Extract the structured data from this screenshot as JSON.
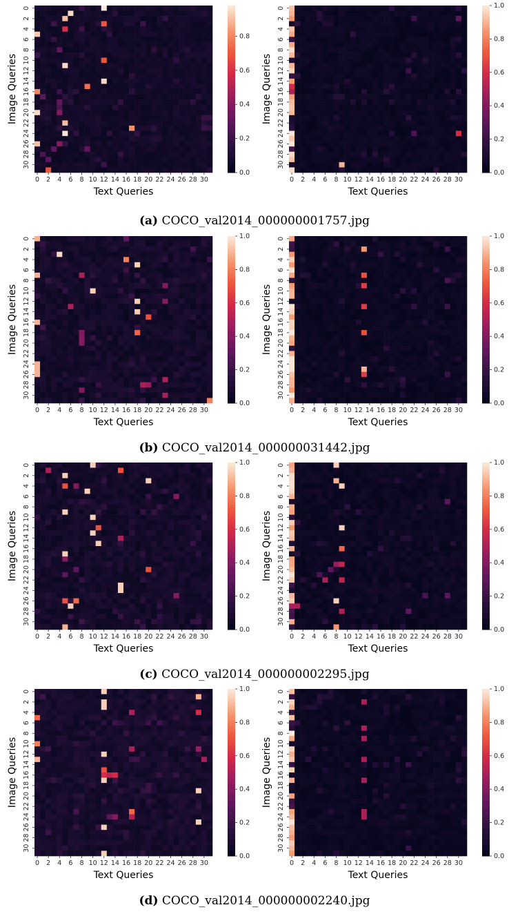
{
  "chart_data": [
    {
      "type": "heatmap",
      "panel": "a",
      "side": "left",
      "xlabel": "Text Queries",
      "ylabel": "Image Queries",
      "clim": [
        0,
        0.98
      ],
      "cbar_ticks": [
        0.0,
        0.2,
        0.4,
        0.6,
        0.8
      ],
      "xticks": [
        0,
        2,
        4,
        6,
        8,
        10,
        12,
        14,
        16,
        18,
        20,
        22,
        24,
        26,
        28,
        30
      ],
      "yticks": [
        0,
        2,
        4,
        6,
        8,
        10,
        12,
        14,
        16,
        18,
        20,
        22,
        24,
        26,
        28,
        30
      ],
      "pattern": {
        "bg": 0.03,
        "noise": 0.06,
        "scattered": [
          [
            0,
            12,
            0.98
          ],
          [
            1,
            6,
            0.95
          ],
          [
            2,
            5,
            0.9
          ],
          [
            3,
            3,
            0.2
          ],
          [
            3,
            12,
            0.7
          ],
          [
            4,
            5,
            0.6
          ],
          [
            4,
            8,
            0.2
          ],
          [
            5,
            0,
            0.92
          ],
          [
            8,
            4,
            0.3
          ],
          [
            9,
            0,
            0.2
          ],
          [
            10,
            12,
            0.7
          ],
          [
            11,
            5,
            0.95
          ],
          [
            14,
            12,
            0.95
          ],
          [
            15,
            9,
            0.75
          ],
          [
            16,
            0,
            0.8
          ],
          [
            16,
            4,
            0.2
          ],
          [
            17,
            1,
            0.3
          ],
          [
            18,
            4,
            0.3
          ],
          [
            19,
            4,
            0.25
          ],
          [
            20,
            0,
            0.95
          ],
          [
            20,
            4,
            0.4
          ],
          [
            22,
            5,
            0.9
          ],
          [
            23,
            17,
            0.82
          ],
          [
            24,
            5,
            0.97
          ],
          [
            26,
            0,
            0.9
          ],
          [
            26,
            4,
            0.4
          ],
          [
            27,
            3,
            0.3
          ],
          [
            27,
            9,
            0.3
          ],
          [
            28,
            1,
            0.25
          ],
          [
            29,
            2,
            0.3
          ],
          [
            31,
            2,
            0.7
          ],
          [
            30,
            12,
            0.2
          ]
        ]
      }
    },
    {
      "type": "heatmap",
      "panel": "a",
      "side": "right",
      "xlabel": "Text Queries",
      "ylabel": "Image Queries",
      "clim": [
        0,
        1
      ],
      "cbar_ticks": [
        0.0,
        0.2,
        0.4,
        0.6,
        0.8,
        1.0
      ],
      "xticks": [
        0,
        2,
        4,
        6,
        8,
        10,
        12,
        14,
        16,
        18,
        20,
        22,
        24,
        26,
        28,
        30
      ],
      "yticks": [
        0,
        2,
        4,
        6,
        8,
        10,
        12,
        14,
        16,
        18,
        20,
        22,
        24,
        26,
        28,
        30
      ],
      "pattern": {
        "bg": 0.01,
        "noise": 0.05,
        "first_col_bright": true,
        "scattered": [
          [
            2,
            22,
            0.2
          ],
          [
            2,
            30,
            0.3
          ],
          [
            12,
            21,
            0.2
          ],
          [
            24,
            22,
            0.25
          ],
          [
            24,
            30,
            0.6
          ],
          [
            30,
            9,
            0.9
          ],
          [
            15,
            0,
            0.6
          ],
          [
            16,
            0,
            0.5
          ]
        ]
      }
    },
    {
      "type": "heatmap",
      "panel": "b",
      "side": "left",
      "xlabel": "Text Queries",
      "ylabel": "Image Queries",
      "clim": [
        0,
        1
      ],
      "cbar_ticks": [
        0.0,
        0.2,
        0.4,
        0.6,
        0.8,
        1.0
      ],
      "xticks": [
        0,
        2,
        4,
        6,
        8,
        10,
        12,
        14,
        16,
        18,
        20,
        22,
        24,
        26,
        28,
        30
      ],
      "yticks": [
        0,
        2,
        4,
        6,
        8,
        10,
        12,
        14,
        16,
        18,
        20,
        22,
        24,
        26,
        28,
        30
      ],
      "pattern": {
        "bg": 0.03,
        "noise": 0.08,
        "scattered": [
          [
            0,
            16,
            0.3
          ],
          [
            3,
            4,
            0.97
          ],
          [
            4,
            16,
            0.8
          ],
          [
            5,
            18,
            0.95
          ],
          [
            7,
            8,
            0.5
          ],
          [
            9,
            23,
            0.4
          ],
          [
            10,
            10,
            0.95
          ],
          [
            12,
            18,
            0.95
          ],
          [
            12,
            23,
            0.4
          ],
          [
            13,
            6,
            0.5
          ],
          [
            14,
            18,
            0.95
          ],
          [
            15,
            20,
            0.7
          ],
          [
            18,
            18,
            0.75
          ],
          [
            18,
            8,
            0.4
          ],
          [
            19,
            8,
            0.4
          ],
          [
            20,
            8,
            0.4
          ],
          [
            27,
            23,
            0.5
          ],
          [
            28,
            19,
            0.5
          ],
          [
            28,
            20,
            0.45
          ],
          [
            29,
            8,
            0.4
          ],
          [
            30,
            23,
            0.5
          ],
          [
            31,
            31,
            0.8
          ],
          [
            0,
            0,
            0.9
          ],
          [
            7,
            0,
            0.9
          ],
          [
            16,
            0,
            0.9
          ],
          [
            24,
            0,
            0.9
          ],
          [
            25,
            0,
            0.9
          ],
          [
            26,
            0,
            0.9
          ]
        ]
      }
    },
    {
      "type": "heatmap",
      "panel": "b",
      "side": "right",
      "xlabel": "Text Queries",
      "ylabel": "Image Queries",
      "clim": [
        0,
        1
      ],
      "cbar_ticks": [
        0.0,
        0.2,
        0.4,
        0.6,
        0.8,
        1.0
      ],
      "xticks": [
        0,
        2,
        4,
        6,
        8,
        10,
        12,
        14,
        16,
        18,
        20,
        22,
        24,
        26,
        28,
        30
      ],
      "yticks": [
        0,
        2,
        4,
        6,
        8,
        10,
        12,
        14,
        16,
        18,
        20,
        22,
        24,
        26,
        28,
        30
      ],
      "pattern": {
        "bg": 0.01,
        "noise": 0.05,
        "first_col_bright": true,
        "scattered": [
          [
            2,
            13,
            0.85
          ],
          [
            7,
            13,
            0.7
          ],
          [
            9,
            13,
            0.65
          ],
          [
            13,
            13,
            0.65
          ],
          [
            18,
            13,
            0.7
          ],
          [
            25,
            13,
            0.9
          ],
          [
            26,
            13,
            0.65
          ],
          [
            2,
            28,
            0.2
          ],
          [
            8,
            28,
            0.25
          ],
          [
            13,
            28,
            0.2
          ],
          [
            26,
            28,
            0.2
          ]
        ]
      }
    },
    {
      "type": "heatmap",
      "panel": "c",
      "side": "left",
      "xlabel": "Text Queries",
      "ylabel": "Image Queries",
      "clim": [
        0,
        1
      ],
      "cbar_ticks": [
        0.0,
        0.2,
        0.4,
        0.6,
        0.8,
        1.0
      ],
      "xticks": [
        0,
        2,
        4,
        6,
        8,
        10,
        12,
        14,
        16,
        18,
        20,
        22,
        24,
        26,
        28,
        30
      ],
      "yticks": [
        0,
        2,
        4,
        6,
        8,
        10,
        12,
        14,
        16,
        18,
        20,
        22,
        24,
        26,
        28,
        30
      ],
      "pattern": {
        "bg": 0.03,
        "noise": 0.08,
        "scattered": [
          [
            0,
            10,
            0.95
          ],
          [
            1,
            2,
            0.5
          ],
          [
            1,
            15,
            0.7
          ],
          [
            2,
            5,
            0.95
          ],
          [
            3,
            20,
            0.95
          ],
          [
            4,
            5,
            0.7
          ],
          [
            4,
            7,
            0.4
          ],
          [
            5,
            9,
            0.95
          ],
          [
            6,
            25,
            0.4
          ],
          [
            9,
            5,
            0.95
          ],
          [
            10,
            10,
            0.95
          ],
          [
            12,
            11,
            0.7
          ],
          [
            13,
            10,
            0.95
          ],
          [
            14,
            15,
            0.5
          ],
          [
            15,
            11,
            0.95
          ],
          [
            17,
            5,
            0.95
          ],
          [
            18,
            5,
            0.4
          ],
          [
            20,
            20,
            0.7
          ],
          [
            23,
            15,
            0.95
          ],
          [
            24,
            15,
            0.95
          ],
          [
            26,
            7,
            0.75
          ],
          [
            26,
            5,
            0.7
          ],
          [
            27,
            6,
            0.95
          ],
          [
            31,
            5,
            0.9
          ],
          [
            25,
            25,
            0.4
          ],
          [
            21,
            5,
            0.3
          ],
          [
            20,
            7,
            0.3
          ]
        ]
      }
    },
    {
      "type": "heatmap",
      "panel": "c",
      "side": "right",
      "xlabel": "Text Queries",
      "ylabel": "Image Queries",
      "clim": [
        0,
        1
      ],
      "cbar_ticks": [
        0.0,
        0.2,
        0.4,
        0.6,
        0.8,
        1.0
      ],
      "xticks": [
        0,
        2,
        4,
        6,
        8,
        10,
        12,
        14,
        16,
        18,
        20,
        22,
        24,
        26,
        28,
        30
      ],
      "yticks": [
        0,
        2,
        4,
        6,
        8,
        10,
        12,
        14,
        16,
        18,
        20,
        22,
        24,
        26,
        28,
        30
      ],
      "pattern": {
        "bg": 0.01,
        "noise": 0.06,
        "first_col_bright": true,
        "scattered": [
          [
            0,
            8,
            0.95
          ],
          [
            3,
            8,
            0.9
          ],
          [
            4,
            9,
            0.95
          ],
          [
            12,
            9,
            0.95
          ],
          [
            16,
            9,
            0.75
          ],
          [
            19,
            8,
            0.45
          ],
          [
            19,
            9,
            0.55
          ],
          [
            20,
            7,
            0.3
          ],
          [
            21,
            5,
            0.25
          ],
          [
            22,
            6,
            0.5
          ],
          [
            22,
            9,
            0.55
          ],
          [
            26,
            8,
            0.95
          ],
          [
            28,
            9,
            0.5
          ],
          [
            31,
            8,
            0.85
          ],
          [
            27,
            0,
            0.5
          ],
          [
            27,
            1,
            0.5
          ],
          [
            25,
            28,
            0.3
          ],
          [
            25,
            24,
            0.25
          ],
          [
            7,
            28,
            0.3
          ],
          [
            28,
            21,
            0.3
          ]
        ]
      }
    },
    {
      "type": "heatmap",
      "panel": "d",
      "side": "left",
      "xlabel": "Text Queries",
      "ylabel": "Image Queries",
      "clim": [
        0,
        1
      ],
      "cbar_ticks": [
        0.0,
        0.2,
        0.4,
        0.6,
        0.8,
        1.0
      ],
      "xticks": [
        0,
        2,
        4,
        6,
        8,
        10,
        12,
        14,
        16,
        18,
        20,
        22,
        24,
        26,
        28,
        30
      ],
      "yticks": [
        0,
        2,
        4,
        6,
        8,
        10,
        12,
        14,
        16,
        18,
        20,
        22,
        24,
        26,
        28,
        30
      ],
      "pattern": {
        "bg": 0.04,
        "noise": 0.08,
        "scattered": [
          [
            0,
            12,
            0.95
          ],
          [
            1,
            29,
            0.9
          ],
          [
            2,
            12,
            0.95
          ],
          [
            3,
            12,
            0.95
          ],
          [
            4,
            17,
            0.5
          ],
          [
            4,
            29,
            0.6
          ],
          [
            5,
            0,
            0.75
          ],
          [
            10,
            0,
            0.8
          ],
          [
            11,
            17,
            0.5
          ],
          [
            11,
            29,
            0.45
          ],
          [
            13,
            0,
            0.9
          ],
          [
            12,
            12,
            0.95
          ],
          [
            13,
            30,
            0.5
          ],
          [
            15,
            12,
            0.7
          ],
          [
            16,
            12,
            0.6
          ],
          [
            16,
            14,
            0.6
          ],
          [
            16,
            13,
            0.55
          ],
          [
            17,
            12,
            0.95
          ],
          [
            19,
            29,
            0.95
          ],
          [
            23,
            17,
            0.75
          ],
          [
            24,
            17,
            0.5
          ],
          [
            24,
            14,
            0.4
          ],
          [
            25,
            29,
            0.95
          ],
          [
            26,
            12,
            0.95
          ],
          [
            31,
            12,
            0.95
          ],
          [
            24,
            13,
            0.3
          ]
        ]
      }
    },
    {
      "type": "heatmap",
      "panel": "d",
      "side": "right",
      "xlabel": "Text Queries",
      "ylabel": "Image Queries",
      "clim": [
        0,
        1
      ],
      "cbar_ticks": [
        0.0,
        0.2,
        0.4,
        0.6,
        0.8,
        1.0
      ],
      "xticks": [
        0,
        2,
        4,
        6,
        8,
        10,
        12,
        14,
        16,
        18,
        20,
        22,
        24,
        26,
        28,
        30
      ],
      "yticks": [
        0,
        2,
        4,
        6,
        8,
        10,
        12,
        14,
        16,
        18,
        20,
        22,
        24,
        26,
        28,
        30
      ],
      "pattern": {
        "bg": 0.01,
        "noise": 0.05,
        "first_col_bright": true,
        "scattered": [
          [
            2,
            13,
            0.5
          ],
          [
            7,
            13,
            0.5
          ],
          [
            9,
            13,
            0.5
          ],
          [
            13,
            13,
            0.5
          ],
          [
            17,
            13,
            0.5
          ],
          [
            23,
            13,
            0.5
          ],
          [
            24,
            13,
            0.5
          ],
          [
            14,
            21,
            0.2
          ],
          [
            30,
            21,
            0.2
          ]
        ]
      }
    }
  ],
  "captions": {
    "a": {
      "letter": "(a)",
      "text": "COCO_val2014_000000001757.jpg"
    },
    "b": {
      "letter": "(b)",
      "text": "COCO_val2014_000000031442.jpg"
    },
    "c": {
      "letter": "(c)",
      "text": "COCO_val2014_000000002295.jpg"
    },
    "d": {
      "letter": "(d)",
      "text": "COCO_val2014_000000002240.jpg"
    }
  },
  "colormap": "rocket"
}
